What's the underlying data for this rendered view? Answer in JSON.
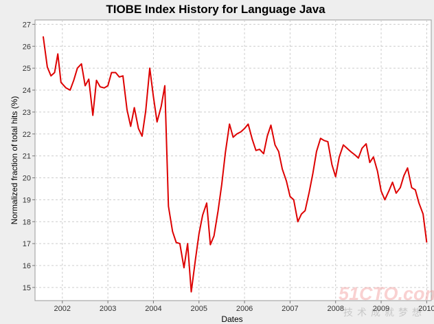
{
  "chart_data": {
    "type": "line",
    "title": "TIOBE Index History for Language Java",
    "xlabel": "Dates",
    "ylabel": "Normalized fraction of total hits (%)",
    "xlim": [
      2001.4,
      2010.1
    ],
    "ylim": [
      14.4,
      27.2
    ],
    "x_ticks": [
      "2002",
      "2003",
      "2004",
      "2005",
      "2006",
      "2007",
      "2008",
      "2009",
      "2010"
    ],
    "y_ticks": [
      "15",
      "16",
      "17",
      "18",
      "19",
      "20",
      "21",
      "22",
      "23",
      "24",
      "25",
      "26",
      "27"
    ],
    "grid": true,
    "legend": "none",
    "colors": {
      "line": "#dd0000",
      "plot_bg": "#ffffff",
      "grid": "#cccccc",
      "page_bg": "#eeeeee"
    },
    "series": [
      {
        "values": [
          [
            2001.58,
            26.45
          ],
          [
            2001.67,
            25.05
          ],
          [
            2001.75,
            24.65
          ],
          [
            2001.83,
            24.8
          ],
          [
            2001.9,
            25.65
          ],
          [
            2001.97,
            24.35
          ],
          [
            2002.08,
            24.1
          ],
          [
            2002.17,
            24.0
          ],
          [
            2002.25,
            24.45
          ],
          [
            2002.33,
            25.0
          ],
          [
            2002.42,
            25.2
          ],
          [
            2002.5,
            24.2
          ],
          [
            2002.58,
            24.5
          ],
          [
            2002.67,
            22.85
          ],
          [
            2002.75,
            24.45
          ],
          [
            2002.83,
            24.15
          ],
          [
            2002.92,
            24.1
          ],
          [
            2003.0,
            24.2
          ],
          [
            2003.08,
            24.8
          ],
          [
            2003.17,
            24.8
          ],
          [
            2003.25,
            24.6
          ],
          [
            2003.33,
            24.65
          ],
          [
            2003.42,
            23.1
          ],
          [
            2003.5,
            22.35
          ],
          [
            2003.58,
            23.2
          ],
          [
            2003.67,
            22.25
          ],
          [
            2003.75,
            21.9
          ],
          [
            2003.83,
            23.05
          ],
          [
            2003.92,
            25.0
          ],
          [
            2004.0,
            23.7
          ],
          [
            2004.08,
            22.55
          ],
          [
            2004.17,
            23.25
          ],
          [
            2004.25,
            24.2
          ],
          [
            2004.33,
            18.7
          ],
          [
            2004.42,
            17.55
          ],
          [
            2004.5,
            17.05
          ],
          [
            2004.58,
            17.0
          ],
          [
            2004.67,
            15.9
          ],
          [
            2004.75,
            17.0
          ],
          [
            2004.83,
            14.8
          ],
          [
            2004.92,
            16.25
          ],
          [
            2005.0,
            17.45
          ],
          [
            2005.08,
            18.3
          ],
          [
            2005.17,
            18.85
          ],
          [
            2005.25,
            16.95
          ],
          [
            2005.33,
            17.35
          ],
          [
            2005.42,
            18.5
          ],
          [
            2005.5,
            19.7
          ],
          [
            2005.58,
            21.15
          ],
          [
            2005.67,
            22.45
          ],
          [
            2005.75,
            21.85
          ],
          [
            2005.83,
            22.0
          ],
          [
            2005.92,
            22.1
          ],
          [
            2006.0,
            22.25
          ],
          [
            2006.08,
            22.45
          ],
          [
            2006.17,
            21.75
          ],
          [
            2006.25,
            21.25
          ],
          [
            2006.33,
            21.3
          ],
          [
            2006.42,
            21.1
          ],
          [
            2006.5,
            21.9
          ],
          [
            2006.58,
            22.4
          ],
          [
            2006.67,
            21.5
          ],
          [
            2006.75,
            21.2
          ],
          [
            2006.83,
            20.4
          ],
          [
            2006.92,
            19.85
          ],
          [
            2007.0,
            19.15
          ],
          [
            2007.08,
            19.0
          ],
          [
            2007.17,
            18.0
          ],
          [
            2007.25,
            18.35
          ],
          [
            2007.33,
            18.5
          ],
          [
            2007.42,
            19.35
          ],
          [
            2007.5,
            20.2
          ],
          [
            2007.58,
            21.2
          ],
          [
            2007.67,
            21.8
          ],
          [
            2007.75,
            21.7
          ],
          [
            2007.83,
            21.65
          ],
          [
            2007.92,
            20.6
          ],
          [
            2008.0,
            20.05
          ],
          [
            2008.08,
            20.95
          ],
          [
            2008.17,
            21.5
          ],
          [
            2008.25,
            21.35
          ],
          [
            2008.33,
            21.2
          ],
          [
            2008.42,
            21.05
          ],
          [
            2008.5,
            20.9
          ],
          [
            2008.58,
            21.35
          ],
          [
            2008.67,
            21.55
          ],
          [
            2008.75,
            20.7
          ],
          [
            2008.83,
            20.95
          ],
          [
            2008.92,
            20.3
          ],
          [
            2009.0,
            19.4
          ],
          [
            2009.08,
            19.0
          ],
          [
            2009.17,
            19.4
          ],
          [
            2009.25,
            19.8
          ],
          [
            2009.33,
            19.3
          ],
          [
            2009.42,
            19.55
          ],
          [
            2009.5,
            20.1
          ],
          [
            2009.58,
            20.45
          ],
          [
            2009.67,
            19.55
          ],
          [
            2009.75,
            19.45
          ],
          [
            2009.83,
            18.85
          ],
          [
            2009.92,
            18.35
          ],
          [
            2010.0,
            17.05
          ]
        ]
      }
    ]
  },
  "watermark": {
    "logo_text": "51CTO.com",
    "tagline": "技术成就梦想"
  }
}
